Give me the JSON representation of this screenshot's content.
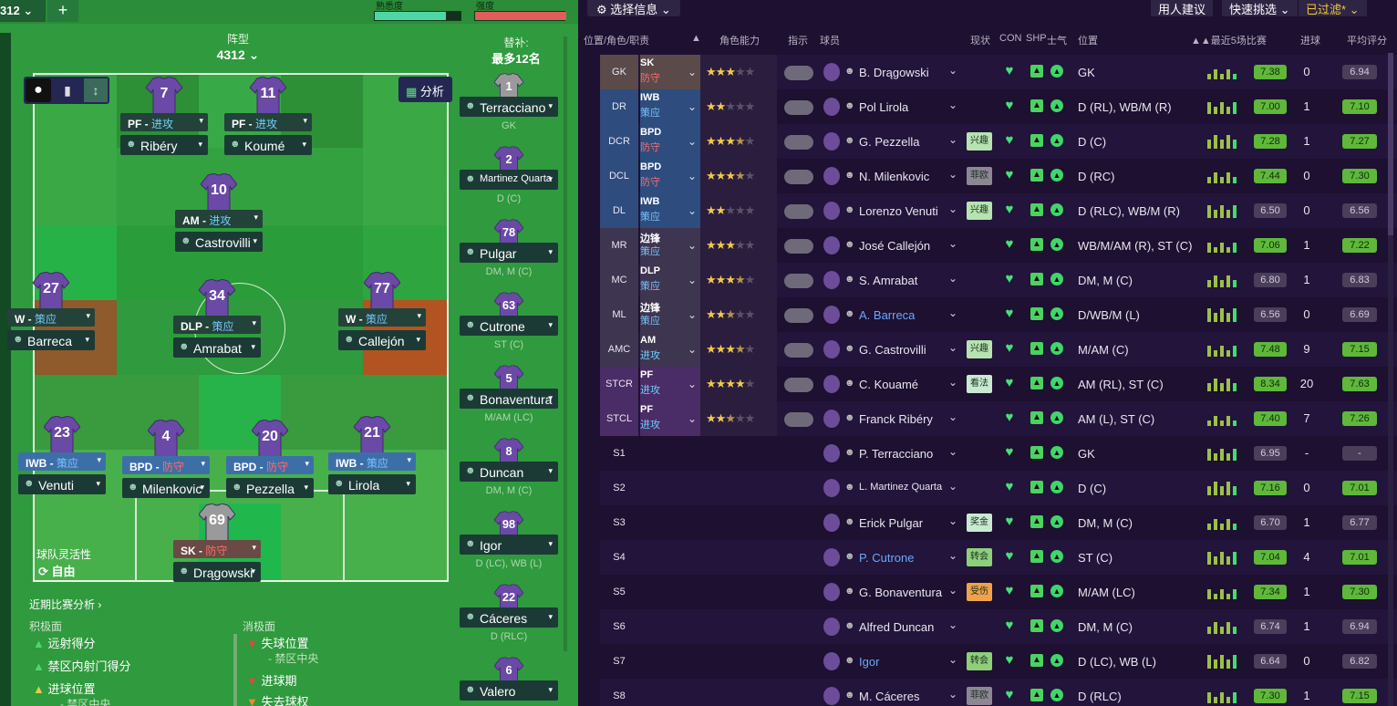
{
  "left": {
    "format_tab": "312",
    "plus": "+",
    "familiarity_label": "熟悉度",
    "intensity_label": "强度",
    "formation_label": "阵型",
    "formation": "4312",
    "subs_label": "替补:",
    "subs_max": "最多12名",
    "analysis": "分析",
    "fluidity_label": "球队灵活性",
    "fluidity_value": "自由",
    "recent_analysis": "近期比赛分析",
    "positives_label": "积极面",
    "negatives_label": "消极面",
    "positives": [
      "远射得分",
      "禁区内射门得分",
      "进球位置"
    ],
    "positive_sub": "- 禁区中央",
    "negatives": [
      "失球位置",
      "进球期",
      "失去球权"
    ],
    "negative_sub": "- 禁区中央",
    "players": [
      {
        "num": "7",
        "role": "PF - ",
        "duty": "进攻",
        "name": "Ribéry"
      },
      {
        "num": "11",
        "role": "PF - ",
        "duty": "进攻",
        "name": "Koumé"
      },
      {
        "num": "10",
        "role": "AM - ",
        "duty": "进攻",
        "name": "Castrovilli"
      },
      {
        "num": "27",
        "role": "W - ",
        "duty": "策应",
        "name": "Barreca"
      },
      {
        "num": "34",
        "role": "DLP - ",
        "duty": "策应",
        "name": "Amrabat"
      },
      {
        "num": "77",
        "role": "W - ",
        "duty": "策应",
        "name": "Callejón"
      },
      {
        "num": "23",
        "role": "IWB - ",
        "duty": "策应",
        "name": "Venuti"
      },
      {
        "num": "4",
        "role": "BPD - ",
        "duty": "防守",
        "name": "Milenkovic"
      },
      {
        "num": "20",
        "role": "BPD - ",
        "duty": "防守",
        "name": "Pezzella"
      },
      {
        "num": "21",
        "role": "IWB - ",
        "duty": "策应",
        "name": "Lirola"
      },
      {
        "num": "69",
        "role": "SK - ",
        "duty": "防守",
        "name": "Drągowski"
      }
    ],
    "subs": [
      {
        "num": "1",
        "name": "Terracciano",
        "pos": "GK"
      },
      {
        "num": "2",
        "name": "Martinez Quarta",
        "pos": "D (C)"
      },
      {
        "num": "78",
        "name": "Pulgar",
        "pos": "DM, M (C)"
      },
      {
        "num": "63",
        "name": "Cutrone",
        "pos": "ST (C)"
      },
      {
        "num": "5",
        "name": "Bonaventura",
        "pos": "M/AM (LC)"
      },
      {
        "num": "8",
        "name": "Duncan",
        "pos": "DM, M (C)"
      },
      {
        "num": "98",
        "name": "Igor",
        "pos": "D (LC), WB (L)"
      },
      {
        "num": "22",
        "name": "Cáceres",
        "pos": "D (RLC)"
      },
      {
        "num": "6",
        "name": "Valero",
        "pos": ""
      }
    ]
  },
  "right": {
    "select_info": "选择信息",
    "hire_advice": "用人建议",
    "quick_pick": "快速挑选",
    "filtered": "已过滤",
    "headers": {
      "pos_role": "位置/角色/职责",
      "role_ability": "角色能力",
      "instr": "指示",
      "player": "球员",
      "status": "现状",
      "con": "CON",
      "shp": "SHP",
      "morale": "士气",
      "position": "位置",
      "last5": "最近5场比赛",
      "goals": "进球",
      "avg": "平均评分"
    },
    "rows": [
      {
        "pos": "GK",
        "role": "SK",
        "duty": "防守",
        "stars": 3,
        "name": "B. Drągowski",
        "status": "",
        "position": "GK",
        "form": "7.38",
        "goals": "0",
        "avg": "6.94"
      },
      {
        "pos": "DR",
        "role": "IWB",
        "duty": "策应",
        "stars": 2,
        "name": "Pol Lirola",
        "status": "",
        "position": "D (RL), WB/M (R)",
        "form": "7.00",
        "goals": "1",
        "avg": "7.10"
      },
      {
        "pos": "DCR",
        "role": "BPD",
        "duty": "防守",
        "stars": 3.5,
        "name": "G. Pezzella",
        "status": "兴趣",
        "position": "D (C)",
        "form": "7.28",
        "goals": "1",
        "avg": "7.27"
      },
      {
        "pos": "DCL",
        "role": "BPD",
        "duty": "防守",
        "stars": 3.5,
        "name": "N. Milenkovic",
        "status": "菲欧",
        "position": "D (RC)",
        "form": "7.44",
        "goals": "0",
        "avg": "7.30"
      },
      {
        "pos": "DL",
        "role": "IWB",
        "duty": "策应",
        "stars": 2,
        "name": "Lorenzo Venuti",
        "status": "兴趣",
        "position": "D (RLC), WB/M (R)",
        "form": "6.50",
        "goals": "0",
        "avg": "6.56"
      },
      {
        "pos": "MR",
        "role": "边锋",
        "duty": "策应",
        "stars": 3,
        "name": "José Callejón",
        "status": "",
        "position": "WB/M/AM (R), ST (C)",
        "form": "7.06",
        "goals": "1",
        "avg": "7.22"
      },
      {
        "pos": "MC",
        "role": "DLP",
        "duty": "策应",
        "stars": 3.5,
        "name": "S. Amrabat",
        "status": "",
        "position": "DM, M (C)",
        "form": "6.80",
        "goals": "1",
        "avg": "6.83"
      },
      {
        "pos": "ML",
        "role": "边锋",
        "duty": "策应",
        "stars": 2.5,
        "name": "A. Barreca",
        "status": "",
        "position": "D/WB/M (L)",
        "form": "6.56",
        "goals": "0",
        "avg": "6.69"
      },
      {
        "pos": "AMC",
        "role": "AM",
        "duty": "进攻",
        "stars": 3.5,
        "name": "G. Castrovilli",
        "status": "兴趣",
        "position": "M/AM (C)",
        "form": "7.48",
        "goals": "9",
        "avg": "7.15"
      },
      {
        "pos": "STCR",
        "role": "PF",
        "duty": "进攻",
        "stars": 4,
        "name": "C. Kouamé",
        "status": "看法",
        "position": "AM (RL), ST (C)",
        "form": "8.34",
        "goals": "20",
        "avg": "7.63"
      },
      {
        "pos": "STCL",
        "role": "PF",
        "duty": "进攻",
        "stars": 2.5,
        "name": "Franck Ribéry",
        "status": "",
        "position": "AM (L), ST (C)",
        "form": "7.40",
        "goals": "7",
        "avg": "7.26"
      },
      {
        "pos": "S1",
        "role": "",
        "duty": "",
        "stars": 0,
        "name": "P. Terracciano",
        "status": "",
        "position": "GK",
        "form": "6.95",
        "goals": "-",
        "avg": "-"
      },
      {
        "pos": "S2",
        "role": "",
        "duty": "",
        "stars": 0,
        "name": "L. Martinez Quarta",
        "status": "",
        "position": "D (C)",
        "form": "7.16",
        "goals": "0",
        "avg": "7.01"
      },
      {
        "pos": "S3",
        "role": "",
        "duty": "",
        "stars": 0,
        "name": "Erick Pulgar",
        "status": "奖金",
        "position": "DM, M (C)",
        "form": "6.70",
        "goals": "1",
        "avg": "6.77"
      },
      {
        "pos": "S4",
        "role": "",
        "duty": "",
        "stars": 0,
        "name": "P. Cutrone",
        "status": "转会",
        "position": "ST (C)",
        "form": "7.04",
        "goals": "4",
        "avg": "7.01"
      },
      {
        "pos": "S5",
        "role": "",
        "duty": "",
        "stars": 0,
        "name": "G. Bonaventura",
        "status": "受伤",
        "position": "M/AM (LC)",
        "form": "7.34",
        "goals": "1",
        "avg": "7.30"
      },
      {
        "pos": "S6",
        "role": "",
        "duty": "",
        "stars": 0,
        "name": "Alfred Duncan",
        "status": "",
        "position": "DM, M (C)",
        "form": "6.74",
        "goals": "1",
        "avg": "6.94"
      },
      {
        "pos": "S7",
        "role": "",
        "duty": "",
        "stars": 0,
        "name": "Igor",
        "status": "转会",
        "position": "D (LC), WB (L)",
        "form": "6.64",
        "goals": "0",
        "avg": "6.82"
      },
      {
        "pos": "S8",
        "role": "",
        "duty": "",
        "stars": 0,
        "name": "M. Cáceres",
        "status": "菲欧",
        "position": "D (RLC)",
        "form": "7.30",
        "goals": "1",
        "avg": "7.15"
      }
    ]
  }
}
